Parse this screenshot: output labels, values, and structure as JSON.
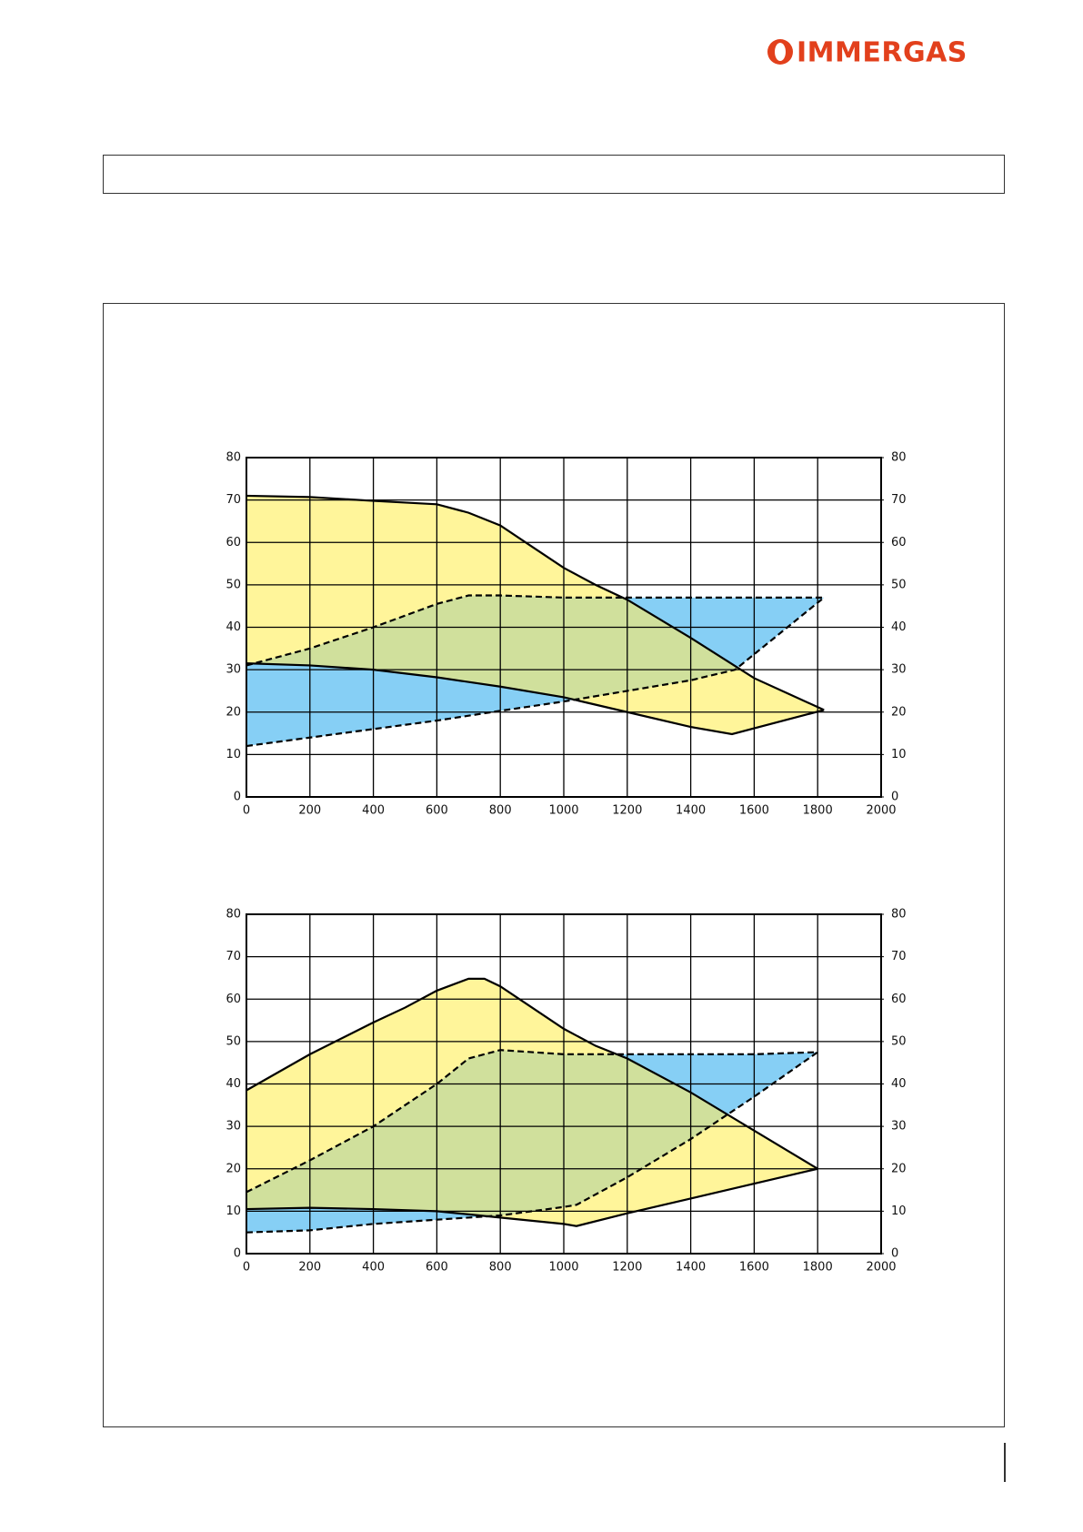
{
  "logo": "IMMERGAS",
  "chart_data": [
    {
      "type": "area",
      "xlim": [
        0,
        2000
      ],
      "xticks": [
        0,
        200,
        400,
        600,
        800,
        1000,
        1200,
        1400,
        1600,
        1800,
        2000
      ],
      "ylim": [
        0,
        80
      ],
      "yticks": [
        0,
        10,
        20,
        30,
        40,
        50,
        60,
        70,
        80
      ],
      "y2lim": [
        0,
        80
      ],
      "y2ticks": [
        0,
        10,
        20,
        30,
        40,
        50,
        60,
        70,
        80
      ],
      "grid": true,
      "bands": [
        {
          "series": [
            0,
            1
          ],
          "color": "#fff59a"
        },
        {
          "series": [
            2,
            3
          ],
          "color": "#86cff5"
        }
      ],
      "overlap_color": "#d0e09c",
      "series": [
        {
          "color": "#000000",
          "line_style": "solid",
          "x": [
            0,
            200,
            400,
            600,
            700,
            800,
            900,
            1000,
            1100,
            1200,
            1400,
            1600,
            1820
          ],
          "values": [
            71,
            70.7,
            69.8,
            69,
            67,
            64,
            59,
            54,
            50,
            46.5,
            37.5,
            28,
            20.5
          ]
        },
        {
          "color": "#000000",
          "line_style": "solid",
          "x": [
            0,
            200,
            400,
            600,
            800,
            1000,
            1200,
            1400,
            1530,
            1820
          ],
          "values": [
            31.5,
            31,
            30,
            28.2,
            26,
            23.5,
            20,
            16.5,
            14.8,
            20.5
          ]
        },
        {
          "color": "#000000",
          "line_style": "dashed",
          "x": [
            0,
            200,
            400,
            600,
            700,
            800,
            1000,
            1200,
            1400,
            1600,
            1820
          ],
          "values": [
            31,
            35,
            40,
            45.5,
            47.5,
            47.5,
            47,
            47,
            47,
            47,
            47
          ]
        },
        {
          "color": "#000000",
          "line_style": "dashed",
          "x": [
            0,
            200,
            400,
            600,
            800,
            1000,
            1200,
            1400,
            1540,
            1820
          ],
          "values": [
            12,
            14,
            16,
            18,
            20.3,
            22.5,
            25,
            27.5,
            30,
            47
          ]
        }
      ]
    },
    {
      "type": "area",
      "xlim": [
        0,
        2000
      ],
      "xticks": [
        0,
        200,
        400,
        600,
        800,
        1000,
        1200,
        1400,
        1600,
        1800,
        2000
      ],
      "ylim": [
        0,
        80
      ],
      "yticks": [
        0,
        10,
        20,
        30,
        40,
        50,
        60,
        70,
        80
      ],
      "y2lim": [
        0,
        80
      ],
      "y2ticks": [
        0,
        10,
        20,
        30,
        40,
        50,
        60,
        70,
        80
      ],
      "grid": true,
      "bands": [
        {
          "series": [
            0,
            1
          ],
          "color": "#fff59a"
        },
        {
          "series": [
            2,
            3
          ],
          "color": "#86cff5"
        }
      ],
      "overlap_color": "#d0e09c",
      "series": [
        {
          "color": "#000000",
          "line_style": "solid",
          "x": [
            0,
            200,
            400,
            500,
            600,
            700,
            750,
            800,
            900,
            1000,
            1100,
            1200,
            1400,
            1600,
            1800
          ],
          "values": [
            38.5,
            47,
            54.5,
            58,
            62,
            64.8,
            64.8,
            63,
            58,
            53,
            49,
            46,
            38,
            29,
            20
          ]
        },
        {
          "color": "#000000",
          "line_style": "solid",
          "x": [
            0,
            200,
            400,
            600,
            800,
            1000,
            1040,
            1200,
            1400,
            1600,
            1800
          ],
          "values": [
            10.5,
            10.8,
            10.5,
            10,
            8.5,
            7,
            6.5,
            9.5,
            13,
            16.5,
            20
          ]
        },
        {
          "color": "#000000",
          "line_style": "dashed",
          "x": [
            0,
            200,
            400,
            600,
            700,
            800,
            1000,
            1200,
            1400,
            1600,
            1800
          ],
          "values": [
            14.5,
            22,
            30,
            40,
            46,
            48,
            47,
            47,
            47,
            47,
            47.5
          ]
        },
        {
          "color": "#000000",
          "line_style": "dashed",
          "x": [
            0,
            200,
            400,
            600,
            800,
            1000,
            1040,
            1200,
            1400,
            1600,
            1800
          ],
          "values": [
            5,
            5.5,
            7,
            8,
            9,
            11,
            11.5,
            18,
            27,
            37,
            47.5
          ]
        }
      ]
    }
  ]
}
